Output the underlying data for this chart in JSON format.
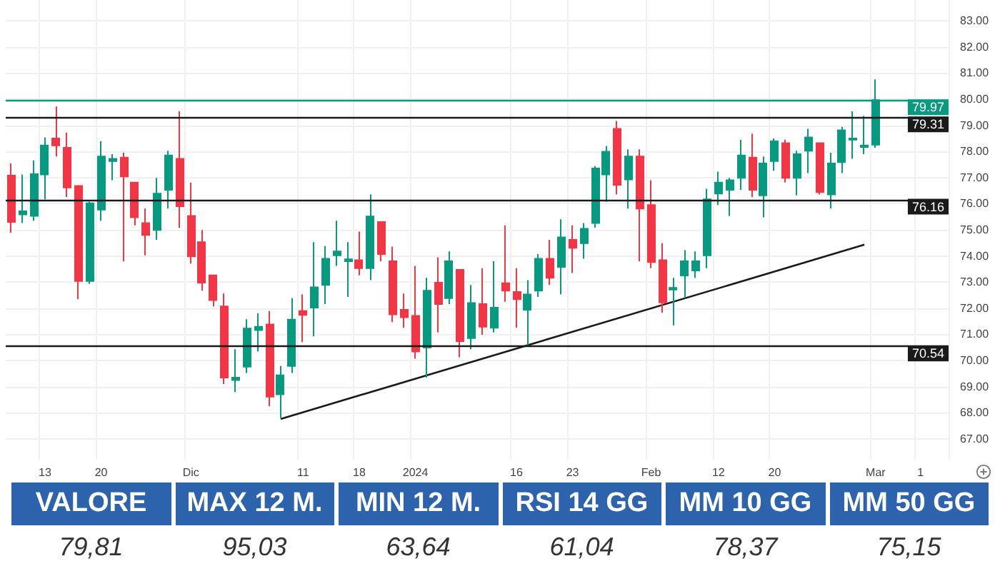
{
  "chart_data": [
    {
      "type": "candlestick",
      "categories": [
        null,
        null,
        null,
        "13",
        null,
        null,
        null,
        null,
        "20",
        null,
        null,
        null,
        null,
        null,
        null,
        null,
        "Dic",
        null,
        null,
        null,
        null,
        null,
        null,
        null,
        null,
        null,
        "11",
        null,
        null,
        null,
        null,
        "18",
        null,
        null,
        null,
        null,
        "2024",
        null,
        null,
        null,
        null,
        null,
        null,
        null,
        null,
        "16",
        null,
        null,
        null,
        null,
        "23",
        null,
        null,
        null,
        null,
        null,
        null,
        "Feb",
        null,
        null,
        null,
        null,
        null,
        "12",
        null,
        null,
        null,
        null,
        "20",
        null,
        null,
        null,
        null,
        null,
        null,
        null,
        null,
        "Mar",
        null,
        null,
        null,
        "1",
        null,
        null
      ],
      "series": [
        {
          "type": "candlestick",
          "ohlc": [
            [
              77.08,
              77.54,
              74.89,
              75.3
            ],
            [
              75.59,
              77.12,
              75.26,
              75.71
            ],
            [
              75.53,
              77.66,
              75.35,
              77.13
            ],
            [
              77.12,
              78.54,
              76.17,
              78.23
            ],
            [
              78.5,
              79.72,
              77.81,
              78.23
            ],
            [
              78.14,
              78.72,
              76.26,
              76.62
            ],
            [
              76.68,
              76.68,
              72.34,
              73.04
            ],
            [
              73.04,
              76.08,
              72.93,
              76.02
            ],
            [
              75.77,
              78.39,
              75.35,
              77.81
            ],
            [
              77.63,
              77.9,
              76.9,
              77.72
            ],
            [
              77.77,
              77.95,
              73.8,
              77.04
            ],
            [
              76.81,
              76.81,
              75.17,
              75.48
            ],
            [
              75.26,
              75.81,
              74.02,
              74.8
            ],
            [
              74.99,
              76.99,
              74.62,
              76.39
            ],
            [
              76.53,
              78.03,
              75.81,
              77.85
            ],
            [
              77.72,
              79.54,
              75.08,
              75.9
            ],
            [
              75.53,
              76.81,
              73.71,
              73.98
            ],
            [
              74.53,
              74.99,
              72.67,
              72.98
            ],
            [
              73.26,
              73.26,
              72.07,
              72.31
            ],
            [
              72.07,
              72.56,
              69.1,
              69.34
            ],
            [
              69.25,
              70.43,
              68.79,
              69.34
            ],
            [
              69.76,
              71.58,
              69.52,
              71.22
            ],
            [
              71.16,
              71.8,
              70.34,
              71.29
            ],
            [
              71.38,
              71.89,
              68.25,
              68.61
            ],
            [
              68.7,
              69.79,
              67.79,
              69.43
            ],
            [
              69.79,
              72.38,
              69.52,
              71.56
            ],
            [
              71.89,
              72.53,
              70.7,
              71.74
            ],
            [
              72.02,
              74.53,
              70.92,
              72.8
            ],
            [
              72.89,
              74.38,
              72.16,
              73.89
            ],
            [
              74.02,
              75.35,
              73.62,
              74.17
            ],
            [
              73.8,
              74.53,
              72.43,
              73.87
            ],
            [
              73.84,
              74.93,
              73.26,
              73.53
            ],
            [
              73.53,
              76.35,
              73.07,
              75.51
            ],
            [
              75.3,
              75.3,
              73.8,
              74.07
            ],
            [
              73.8,
              74.35,
              71.47,
              71.76
            ],
            [
              71.94,
              72.56,
              71.25,
              71.65
            ],
            [
              71.71,
              73.62,
              70.07,
              70.34
            ],
            [
              70.49,
              73.16,
              69.34,
              72.67
            ],
            [
              72.98,
              73.95,
              71.07,
              72.16
            ],
            [
              72.38,
              74.17,
              72.16,
              73.8
            ],
            [
              73.47,
              73.47,
              70.12,
              70.74
            ],
            [
              70.85,
              72.89,
              70.43,
              72.2
            ],
            [
              72.16,
              73.53,
              70.98,
              71.29
            ],
            [
              71.25,
              73.8,
              71.07,
              72.02
            ],
            [
              72.96,
              75.17,
              72.25,
              72.67
            ],
            [
              72.62,
              73.53,
              71.25,
              72.34
            ],
            [
              71.94,
              73.07,
              70.56,
              72.53
            ],
            [
              72.67,
              74.07,
              72.43,
              73.89
            ],
            [
              73.89,
              74.62,
              72.89,
              73.16
            ],
            [
              73.58,
              75.4,
              72.53,
              74.71
            ],
            [
              74.62,
              75.17,
              73.35,
              74.31
            ],
            [
              74.49,
              75.26,
              73.89,
              75.04
            ],
            [
              75.26,
              77.44,
              75.08,
              77.35
            ],
            [
              77.12,
              78.21,
              76.08,
              77.99
            ],
            [
              78.87,
              79.17,
              76.35,
              76.72
            ],
            [
              76.93,
              78.08,
              75.81,
              77.81
            ],
            [
              77.81,
              78.08,
              73.8,
              75.81
            ],
            [
              75.95,
              76.9,
              73.53,
              73.76
            ],
            [
              73.84,
              74.49,
              71.83,
              72.22
            ],
            [
              72.71,
              73.16,
              71.34,
              72.78
            ],
            [
              73.25,
              74.22,
              72.38,
              73.8
            ],
            [
              73.44,
              74.17,
              73.16,
              73.8
            ],
            [
              74.02,
              76.57,
              73.53,
              76.17
            ],
            [
              76.39,
              77.23,
              75.95,
              76.81
            ],
            [
              76.53,
              76.99,
              75.53,
              76.9
            ],
            [
              76.99,
              78.45,
              76.53,
              77.85
            ],
            [
              77.77,
              78.68,
              76.26,
              76.53
            ],
            [
              76.32,
              77.81,
              75.48,
              77.54
            ],
            [
              77.63,
              78.5,
              77.26,
              78.39
            ],
            [
              78.32,
              78.45,
              76.81,
              76.99
            ],
            [
              76.99,
              78.03,
              76.32,
              77.9
            ],
            [
              78.03,
              78.87,
              77.17,
              78.54
            ],
            [
              78.32,
              78.32,
              76.35,
              76.44
            ],
            [
              76.35,
              77.95,
              75.81,
              77.54
            ],
            [
              77.59,
              78.94,
              77.17,
              78.81
            ],
            [
              78.45,
              79.54,
              77.72,
              78.5
            ],
            [
              78.17,
              79.36,
              77.9,
              78.23
            ],
            [
              78.26,
              80.76,
              78.14,
              79.97
            ],
            null,
            null,
            null,
            null,
            null,
            null
          ],
          "colors": [
            "#f23645",
            "#089981",
            "#089981",
            "#089981",
            "#f23645",
            "#f23645",
            "#f23645",
            "#089981",
            "#089981",
            "#089981",
            "#f23645",
            "#f23645",
            "#f23645",
            "#089981",
            "#089981",
            "#f23645",
            "#f23645",
            "#f23645",
            "#f23645",
            "#f23645",
            "#089981",
            "#089981",
            "#089981",
            "#f23645",
            "#089981",
            "#089981",
            "#f23645",
            "#089981",
            "#089981",
            "#089981",
            "#089981",
            "#f23645",
            "#089981",
            "#f23645",
            "#f23645",
            "#f23645",
            "#f23645",
            "#089981",
            "#f23645",
            "#089981",
            "#f23645",
            "#089981",
            "#f23645",
            "#089981",
            "#f23645",
            "#f23645",
            "#089981",
            "#089981",
            "#f23645",
            "#089981",
            "#f23645",
            "#089981",
            "#089981",
            "#089981",
            "#f23645",
            "#089981",
            "#f23645",
            "#f23645",
            "#f23645",
            "#089981",
            "#089981",
            "#089981",
            "#089981",
            "#089981",
            "#089981",
            "#089981",
            "#f23645",
            "#089981",
            "#089981",
            "#f23645",
            "#089981",
            "#089981",
            "#f23645",
            "#089981",
            "#089981",
            "#089981",
            "#089981",
            "#089981",
            null,
            null,
            null,
            null,
            null,
            null
          ]
        },
        {
          "type": "line",
          "color": "#1a1a1a",
          "values": [
            null,
            null,
            null,
            null,
            null,
            null,
            null,
            null,
            null,
            null,
            null,
            null,
            null,
            null,
            null,
            null,
            null,
            null,
            null,
            null,
            null,
            null,
            null,
            null,
            67.76,
            null,
            null,
            null,
            null,
            null,
            null,
            null,
            null,
            null,
            null,
            null,
            null,
            null,
            null,
            null,
            null,
            null,
            null,
            null,
            null,
            null,
            null,
            null,
            null,
            null,
            null,
            null,
            null,
            null,
            null,
            null,
            null,
            null,
            null,
            null,
            null,
            null,
            null,
            null,
            null,
            null,
            null,
            null,
            null,
            null,
            null,
            null,
            null,
            null,
            null,
            null,
            74.43,
            null,
            null,
            null,
            null,
            null,
            null,
            null
          ]
        }
      ],
      "ylim": [
        66.2,
        83.8
      ],
      "yticks": [
        {
          "value": 67,
          "label": "67.00"
        },
        {
          "value": 68,
          "label": "68.00"
        },
        {
          "value": 69,
          "label": "69.00"
        },
        {
          "value": 70,
          "label": "70.00"
        },
        {
          "value": 71,
          "label": "71.00"
        },
        {
          "value": 72,
          "label": "72.00"
        },
        {
          "value": 73,
          "label": "73.00"
        },
        {
          "value": 74,
          "label": "74.00"
        },
        {
          "value": 75,
          "label": "75.00"
        },
        {
          "value": 76,
          "label": "76.00"
        },
        {
          "value": 77,
          "label": "77.00"
        },
        {
          "value": 78,
          "label": "78.00"
        },
        {
          "value": 79,
          "label": "79.00"
        },
        {
          "value": 80,
          "label": "80.00"
        },
        {
          "value": 81,
          "label": "81.00"
        },
        {
          "value": 82,
          "label": "82.00"
        },
        {
          "value": 83,
          "label": "83.00"
        }
      ],
      "grid": true,
      "ref_lines": [
        {
          "axis": "y",
          "value": 79.97,
          "label": "79.97",
          "color": "#089981"
        },
        {
          "axis": "y",
          "value": 79.31,
          "label": "79.31",
          "color": "#1a1a1a"
        },
        {
          "axis": "y",
          "value": 76.16,
          "label": "76.16",
          "color": "#1a1a1a"
        },
        {
          "axis": "y",
          "value": 70.54,
          "label": "70.54",
          "color": "#1a1a1a"
        }
      ]
    },
    {
      "type": "other",
      "categories": [
        "VALORE",
        "MAX 12 M.",
        "MIN 12 M.",
        "RSI 14 GG",
        "MM 10 GG",
        "MM 50 GG"
      ],
      "value_labels": [
        "79,81",
        "95,03",
        "63,64",
        "61,04",
        "78,37",
        "75,15"
      ],
      "color": "#2d62ad"
    }
  ]
}
